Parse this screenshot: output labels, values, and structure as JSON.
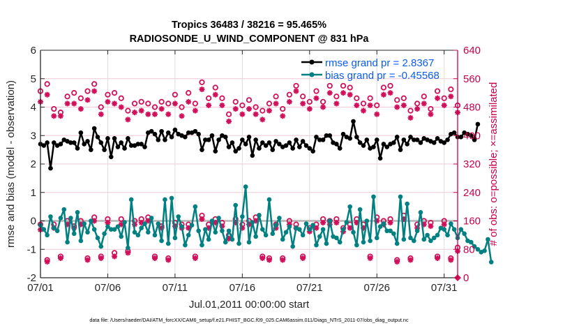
{
  "chart_data": {
    "type": "line",
    "title_line1": "Tropics 36483 / 38216 = 95.465%",
    "title_line2": "RADIOSONDE_U_WIND_COMPONENT @ 831 hPa",
    "xlabel": "Jul.01,2011 00:00:00 start",
    "ylabel_left": "rmse and bias (model - observation)",
    "ylabel_right": "# of obs: o=possible; ×=assimilated",
    "footer": "data file: /Users/raeder/DAI/ATM_forcXX/CAM6_setup/f.e21.FHIST_BGC.f09_025.CAM6assim.011/Diags_NTrS_2011-07/obs_diag_output.nc",
    "x_unit": "days since Jul.01,2011 00:00:00",
    "xlim": [
      0,
      31
    ],
    "x_ticks": [
      0,
      5,
      10,
      15,
      20,
      25,
      30
    ],
    "x_tick_labels": [
      "07/01",
      "07/06",
      "07/11",
      "07/16",
      "07/21",
      "07/26",
      "07/31"
    ],
    "ylim_left": [
      -2,
      6
    ],
    "y_ticks_left": [
      -2,
      -1,
      0,
      1,
      2,
      3,
      4,
      5,
      6
    ],
    "y_tick_labels_left": [
      "-2",
      "-1",
      "0",
      "1",
      "2",
      "3",
      "4",
      "5",
      "6"
    ],
    "ylim_right": [
      0,
      640
    ],
    "y_ticks_right": [
      0,
      80,
      160,
      240,
      320,
      400,
      480,
      560,
      640
    ],
    "y_tick_labels_right": [
      "0",
      "80",
      "160",
      "240",
      "320",
      "400",
      "480",
      "560",
      "640"
    ],
    "grid": true,
    "zero_line": 0,
    "legend": {
      "placement": "top-right",
      "entries": [
        {
          "label": "rmse grand pr = 2.8367",
          "color": "#000000",
          "marker": "filled-circle"
        },
        {
          "label": "bias grand pr = -0.45568",
          "color": "#008080",
          "marker": "filled-circle"
        }
      ]
    },
    "colors": {
      "rmse": "#000000",
      "bias": "#008080",
      "counts": "#d0105a",
      "grid": "#f0c8d6",
      "zero_line": "#b4b4b4",
      "right_axis": "#c8004b",
      "legend_text": "#0a5cf0"
    },
    "series": [
      {
        "name": "rmse",
        "axis": "left",
        "x_step_days": 0.25,
        "x_start": 0,
        "values": [
          2.7,
          2.65,
          2.75,
          1.85,
          2.75,
          2.65,
          2.7,
          2.85,
          2.8,
          2.75,
          2.75,
          2.55,
          3.1,
          2.7,
          2.8,
          2.5,
          3.25,
          2.95,
          2.75,
          2.5,
          2.9,
          2.25,
          2.9,
          2.6,
          2.75,
          2.55,
          2.9,
          2.65,
          2.65,
          2.7,
          2.7,
          2.6,
          3.1,
          3.15,
          3.05,
          2.85,
          3.15,
          2.85,
          3.1,
          2.95,
          3.2,
          3.05,
          3.0,
          2.95,
          3.1,
          3.1,
          3.15,
          3.05,
          2.5,
          2.85,
          2.85,
          3.0,
          2.45,
          2.85,
          3.0,
          2.95,
          2.6,
          2.75,
          2.45,
          2.55,
          2.85,
          2.7,
          2.95,
          2.3,
          2.85,
          2.55,
          2.75,
          2.65,
          2.75,
          2.5,
          2.8,
          2.7,
          2.6,
          2.65,
          2.75,
          2.55,
          2.85,
          2.6,
          2.8,
          2.65,
          2.55,
          2.45,
          2.95,
          2.85,
          2.85,
          3.0,
          3.0,
          2.75,
          2.7,
          2.55,
          3.05,
          2.95,
          2.9,
          3.5,
          2.95,
          2.75,
          2.65,
          2.85,
          2.55,
          2.6,
          2.85,
          2.2,
          2.7,
          2.6,
          2.7,
          2.75,
          2.95,
          2.5,
          2.85,
          2.7,
          2.95,
          2.85,
          2.85,
          2.75,
          2.9,
          2.85,
          2.8,
          2.75,
          2.9,
          2.8,
          2.75,
          2.85,
          3.05,
          3.1,
          2.95,
          2.95,
          3.1,
          3.05,
          3.0,
          2.85,
          3.4
        ]
      },
      {
        "name": "bias",
        "axis": "left",
        "x_step_days": 0.25,
        "x_start": 0,
        "values": [
          -0.15,
          -0.3,
          -0.5,
          0.15,
          -0.25,
          -0.35,
          0.1,
          0.4,
          -0.75,
          0.1,
          -0.45,
          0.3,
          -0.7,
          -0.1,
          -0.4,
          0.0,
          -0.3,
          -0.6,
          -0.9,
          -0.45,
          -0.2,
          -0.3,
          -0.3,
          -0.2,
          -0.55,
          -0.05,
          -0.95,
          0.75,
          -0.4,
          -0.5,
          -0.25,
          -0.1,
          -0.4,
          0.1,
          -0.5,
          -0.1,
          -0.7,
          0.75,
          -0.8,
          0.8,
          -0.6,
          0.15,
          -0.2,
          -0.85,
          -0.5,
          -0.15,
          0.5,
          -0.35,
          -0.85,
          -0.3,
          -0.65,
          0.0,
          -0.4,
          0.1,
          -0.35,
          -0.75,
          -0.35,
          -0.65,
          0.55,
          -0.8,
          0.15,
          1.2,
          -0.75,
          -0.05,
          -0.55,
          0.2,
          -0.3,
          -0.5,
          0.75,
          -0.45,
          -0.15,
          0.1,
          -0.65,
          -0.4,
          -0.2,
          -0.9,
          -0.25,
          -0.3,
          -0.5,
          -0.1,
          -0.3,
          -0.15,
          -0.85,
          -0.55,
          -0.3,
          -0.8,
          0.0,
          -0.55,
          -0.6,
          -0.75,
          -0.3,
          -0.05,
          0.5,
          -0.4,
          -0.85,
          0.4,
          -0.75,
          0.0,
          -0.7,
          0.85,
          -0.6,
          -0.2,
          -0.1,
          -0.35,
          -0.35,
          -0.45,
          -0.8,
          0.85,
          -0.65,
          0.6,
          -0.6,
          -0.7,
          -0.35,
          0.3,
          -0.65,
          -0.5,
          -0.7,
          -0.6,
          -0.5,
          -0.25,
          -0.3,
          -0.5,
          -0.1,
          -0.3,
          -0.6,
          -0.3,
          -0.45,
          -0.7,
          -0.75,
          -0.9,
          -1.0,
          -1.1,
          -1.05,
          -0.65,
          -1.45
        ]
      },
      {
        "name": "obs_possible_upper",
        "axis": "right",
        "marker": "open-circle",
        "x_step_days": 0.5,
        "x_start": 0,
        "values": [
          525,
          545,
          475,
          465,
          510,
          520,
          505,
          525,
          545,
          480,
          515,
          520,
          505,
          470,
          490,
          495,
          490,
          480,
          495,
          490,
          515,
          480,
          520,
          490,
          550,
          505,
          535,
          505,
          460,
          495,
          485,
          500,
          480,
          470,
          490,
          510,
          475,
          515,
          540,
          510,
          495,
          525,
          495,
          540,
          510,
          540,
          535,
          505,
          490,
          505,
          485,
          535,
          540,
          500,
          505,
          470,
          490,
          510,
          475,
          525,
          505,
          530,
          485
        ]
      },
      {
        "name": "obs_assimilated_upper",
        "axis": "right",
        "marker": "asterisk",
        "x_step_days": 0.5,
        "x_start": 0,
        "values": [
          495,
          515,
          455,
          455,
          490,
          490,
          475,
          500,
          525,
          460,
          495,
          490,
          480,
          445,
          465,
          470,
          460,
          460,
          475,
          460,
          490,
          455,
          495,
          470,
          530,
          485,
          515,
          485,
          440,
          475,
          460,
          475,
          460,
          445,
          470,
          490,
          455,
          495,
          525,
          490,
          475,
          505,
          480,
          520,
          490,
          520,
          515,
          485,
          470,
          485,
          460,
          515,
          520,
          480,
          485,
          450,
          475,
          490,
          460,
          505,
          485,
          510,
          465
        ]
      },
      {
        "name": "obs_possible_lower",
        "axis": "right",
        "marker": "open-circle",
        "x_step_days": 0.5,
        "x_start": 0,
        "values": [
          150,
          50,
          150,
          60,
          160,
          145,
          160,
          55,
          170,
          60,
          165,
          70,
          165,
          75,
          160,
          165,
          170,
          60,
          145,
          55,
          155,
          150,
          150,
          60,
          175,
          150,
          165,
          155,
          120,
          165,
          150,
          160,
          170,
          60,
          55,
          150,
          55,
          160,
          150,
          60,
          140,
          150,
          165,
          160,
          165,
          140,
          150,
          165,
          150,
          60,
          170,
          160,
          165,
          50,
          175,
          55,
          150,
          160,
          155,
          60,
          160,
          55,
          85
        ]
      },
      {
        "name": "obs_assimilated_lower",
        "axis": "right",
        "marker": "asterisk",
        "x_step_days": 0.5,
        "x_start": 0,
        "values": [
          135,
          45,
          140,
          55,
          150,
          140,
          150,
          50,
          160,
          55,
          155,
          60,
          150,
          70,
          150,
          155,
          160,
          55,
          140,
          50,
          145,
          140,
          140,
          55,
          165,
          140,
          155,
          145,
          110,
          155,
          140,
          150,
          160,
          55,
          50,
          140,
          50,
          150,
          140,
          55,
          130,
          140,
          155,
          150,
          155,
          130,
          140,
          155,
          140,
          55,
          160,
          150,
          155,
          45,
          165,
          50,
          140,
          150,
          145,
          55,
          150,
          50,
          75
        ]
      }
    ],
    "final_marker": {
      "x": 31,
      "value": 0,
      "axis": "right",
      "marker": "diamond"
    }
  }
}
